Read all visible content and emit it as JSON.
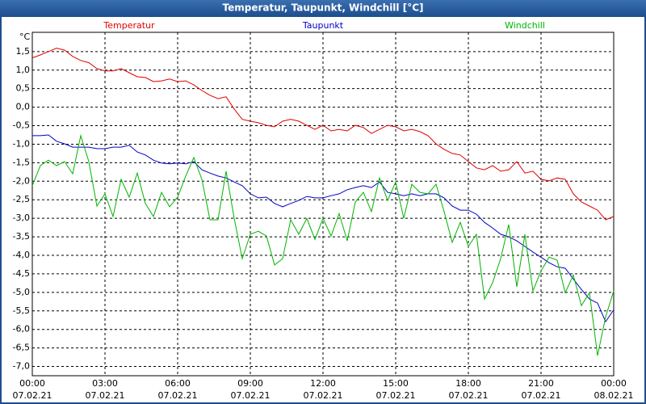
{
  "chart_data": {
    "type": "line",
    "title": "Temperatur, Taupunkt, Windchill [°C]",
    "y_unit": "°C",
    "x": [
      0,
      20,
      40,
      60,
      80,
      100,
      120,
      140,
      160,
      180,
      200,
      220,
      240,
      260,
      280,
      300,
      320,
      340,
      360,
      380,
      400,
      420,
      440,
      460,
      480,
      500,
      520,
      540,
      560,
      580,
      600,
      620,
      640,
      660,
      680,
      700,
      720,
      740,
      760,
      780,
      800,
      820,
      840,
      860,
      880,
      900,
      920,
      940,
      960,
      980,
      1000,
      1020,
      1040,
      1060,
      1080,
      1100,
      1120,
      1140,
      1160,
      1180,
      1200,
      1220,
      1240,
      1260,
      1280,
      1300,
      1320,
      1340,
      1360,
      1380,
      1400,
      1420,
      1440
    ],
    "series": [
      {
        "name": "Temperatur",
        "color": "#e00000",
        "values": [
          1.33,
          1.41,
          1.5,
          1.59,
          1.54,
          1.37,
          1.26,
          1.2,
          1.04,
          0.98,
          0.98,
          1.04,
          0.93,
          0.82,
          0.8,
          0.69,
          0.71,
          0.76,
          0.69,
          0.71,
          0.6,
          0.45,
          0.32,
          0.23,
          0.28,
          -0.05,
          -0.33,
          -0.38,
          -0.42,
          -0.49,
          -0.53,
          -0.38,
          -0.33,
          -0.38,
          -0.49,
          -0.6,
          -0.49,
          -0.64,
          -0.6,
          -0.64,
          -0.49,
          -0.55,
          -0.71,
          -0.6,
          -0.49,
          -0.53,
          -0.64,
          -0.6,
          -0.66,
          -0.77,
          -0.99,
          -1.14,
          -1.25,
          -1.29,
          -1.47,
          -1.64,
          -1.69,
          -1.58,
          -1.73,
          -1.69,
          -1.47,
          -1.78,
          -1.73,
          -1.95,
          -1.99,
          -1.91,
          -1.95,
          -2.34,
          -2.56,
          -2.67,
          -2.78,
          -3.04,
          -2.95
        ]
      },
      {
        "name": "Taupunkt",
        "color": "#0000c8",
        "values": [
          -0.77,
          -0.77,
          -0.75,
          -0.92,
          -0.99,
          -1.08,
          -1.08,
          -1.08,
          -1.12,
          -1.12,
          -1.08,
          -1.08,
          -1.03,
          -1.21,
          -1.29,
          -1.43,
          -1.51,
          -1.53,
          -1.51,
          -1.53,
          -1.47,
          -1.69,
          -1.78,
          -1.86,
          -1.91,
          -2.02,
          -2.12,
          -2.34,
          -2.45,
          -2.43,
          -2.6,
          -2.69,
          -2.6,
          -2.52,
          -2.41,
          -2.45,
          -2.45,
          -2.39,
          -2.34,
          -2.23,
          -2.17,
          -2.12,
          -2.17,
          -2.02,
          -2.3,
          -2.34,
          -2.39,
          -2.34,
          -2.39,
          -2.34,
          -2.34,
          -2.45,
          -2.67,
          -2.78,
          -2.78,
          -2.89,
          -3.11,
          -3.26,
          -3.43,
          -3.5,
          -3.61,
          -3.76,
          -3.91,
          -4.05,
          -4.2,
          -4.31,
          -4.35,
          -4.64,
          -4.92,
          -5.18,
          -5.29,
          -5.79,
          -5.47
        ]
      },
      {
        "name": "Windchill",
        "color": "#00b400",
        "values": [
          -2.12,
          -1.58,
          -1.43,
          -1.58,
          -1.47,
          -1.8,
          -0.77,
          -1.47,
          -2.67,
          -2.34,
          -2.95,
          -1.95,
          -2.43,
          -1.78,
          -2.6,
          -2.95,
          -2.3,
          -2.69,
          -2.43,
          -1.86,
          -1.36,
          -1.95,
          -3.04,
          -3.04,
          -1.73,
          -3.0,
          -4.09,
          -3.43,
          -3.35,
          -3.48,
          -4.26,
          -4.09,
          -3.04,
          -3.43,
          -3.0,
          -3.57,
          -3.0,
          -3.48,
          -2.87,
          -3.61,
          -2.56,
          -2.3,
          -2.82,
          -1.91,
          -2.52,
          -2.02,
          -3.0,
          -2.08,
          -2.3,
          -2.34,
          -2.08,
          -2.82,
          -3.65,
          -3.11,
          -3.76,
          -3.43,
          -5.18,
          -4.74,
          -4.09,
          -3.17,
          -4.85,
          -3.43,
          -4.96,
          -4.42,
          -4.05,
          -4.13,
          -5.01,
          -4.53,
          -5.36,
          -5.01,
          -6.71,
          -5.66,
          -4.96
        ]
      }
    ],
    "xlim": [
      0,
      1440
    ],
    "xticks": [
      {
        "value": 0,
        "label": "00:00",
        "date": "07.02.21"
      },
      {
        "value": 180,
        "label": "03:00",
        "date": "07.02.21"
      },
      {
        "value": 360,
        "label": "06:00",
        "date": "07.02.21"
      },
      {
        "value": 540,
        "label": "09:00",
        "date": "07.02.21"
      },
      {
        "value": 720,
        "label": "12:00",
        "date": "07.02.21"
      },
      {
        "value": 900,
        "label": "15:00",
        "date": "07.02.21"
      },
      {
        "value": 1080,
        "label": "18:00",
        "date": "07.02.21"
      },
      {
        "value": 1260,
        "label": "21:00",
        "date": "07.02.21"
      },
      {
        "value": 1440,
        "label": "00:00",
        "date": "08.02.21"
      }
    ],
    "ylim": [
      -7.25,
      2.02
    ],
    "yticks": [
      {
        "value": 1.5,
        "label": "1,5"
      },
      {
        "value": 1.0,
        "label": "1,0"
      },
      {
        "value": 0.5,
        "label": "0,5"
      },
      {
        "value": 0,
        "label": "0,0"
      },
      {
        "value": -0.5,
        "label": "-0,5"
      },
      {
        "value": -1.0,
        "label": "-1,0"
      },
      {
        "value": -1.5,
        "label": "-1,5"
      },
      {
        "value": -2.0,
        "label": "-2,0"
      },
      {
        "value": -2.5,
        "label": "-2,5"
      },
      {
        "value": -3.0,
        "label": "-3,0"
      },
      {
        "value": -3.5,
        "label": "-3,5"
      },
      {
        "value": -4.0,
        "label": "-4,0"
      },
      {
        "value": -4.5,
        "label": "-4,5"
      },
      {
        "value": -5.0,
        "label": "-5,0"
      },
      {
        "value": -5.5,
        "label": "-5,5"
      },
      {
        "value": -6.0,
        "label": "-6,0"
      },
      {
        "value": -6.5,
        "label": "-6,5"
      },
      {
        "value": -7.0,
        "label": "-7,0"
      }
    ],
    "grid": true
  }
}
